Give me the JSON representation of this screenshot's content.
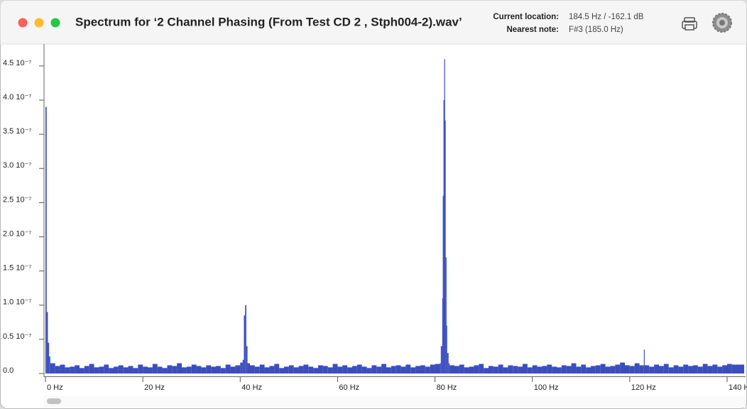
{
  "header": {
    "title": "Spectrum for ‘2 Channel Phasing (From Test CD 2 , Stph004-2).wav’",
    "location_label": "Current location:",
    "location_value": "184.5 Hz / -162.1 dB",
    "note_label": "Nearest note:",
    "note_value": "F#3 (185.0 Hz)"
  },
  "chart_data": {
    "type": "spectrum",
    "color": "#3b4dbf",
    "xlim": [
      0,
      143.5
    ],
    "ylim": [
      0,
      4.8e-07
    ],
    "xticks": [
      {
        "value": 0,
        "label": "0 Hz"
      },
      {
        "value": 20,
        "label": "20 Hz"
      },
      {
        "value": 40,
        "label": "40 Hz"
      },
      {
        "value": 60,
        "label": "60 Hz"
      },
      {
        "value": 80,
        "label": "80 Hz"
      },
      {
        "value": 100,
        "label": "100 Hz"
      },
      {
        "value": 120,
        "label": "120 Hz"
      },
      {
        "value": 140,
        "label": "140 Hz"
      }
    ],
    "yticks": [
      {
        "value": 0,
        "label": "0.0"
      },
      {
        "value": 5e-08,
        "label": "0.5 10⁻⁷"
      },
      {
        "value": 1e-07,
        "label": "1.0 10⁻⁷"
      },
      {
        "value": 1.5e-07,
        "label": "1.5 10⁻⁷"
      },
      {
        "value": 2e-07,
        "label": "2.0 10⁻⁷"
      },
      {
        "value": 2.5e-07,
        "label": "2.5 10⁻⁷"
      },
      {
        "value": 3e-07,
        "label": "3.0 10⁻⁷"
      },
      {
        "value": 3.5e-07,
        "label": "3.5 10⁻⁷"
      },
      {
        "value": 4e-07,
        "label": "4.0 10⁻⁷"
      },
      {
        "value": 4.5e-07,
        "label": "4.5 10⁻⁷"
      }
    ],
    "x": [
      0,
      0.25,
      0.5,
      0.75,
      1,
      2,
      3,
      4,
      5,
      6,
      7,
      8,
      9,
      10,
      11,
      12,
      13,
      14,
      15,
      16,
      17,
      18,
      19,
      20,
      21,
      22,
      23,
      24,
      25,
      26,
      27,
      28,
      29,
      30,
      31,
      32,
      33,
      34,
      35,
      36,
      37,
      38,
      39,
      40,
      40.5,
      40.75,
      41,
      41.25,
      41.5,
      42,
      43,
      44,
      45,
      46,
      47,
      48,
      49,
      50,
      51,
      52,
      53,
      54,
      55,
      56,
      57,
      58,
      59,
      60,
      61,
      62,
      63,
      64,
      65,
      66,
      67,
      68,
      69,
      70,
      71,
      72,
      73,
      74,
      75,
      76,
      77,
      78,
      79,
      80,
      81,
      81.2,
      81.5,
      81.6,
      81.75,
      81.9,
      82,
      82.2,
      82.3,
      82.5,
      82.8,
      83,
      84,
      85,
      86,
      87,
      88,
      89,
      90,
      91,
      92,
      93,
      94,
      95,
      96,
      97,
      98,
      99,
      100,
      101,
      102,
      103,
      104,
      105,
      106,
      107,
      108,
      109,
      110,
      111,
      112,
      113,
      114,
      115,
      116,
      117,
      118,
      119,
      120,
      121,
      122,
      122.9,
      123,
      124,
      125,
      126,
      127,
      128,
      129,
      130,
      131,
      132,
      133,
      134,
      135,
      136,
      137,
      138,
      139,
      140,
      141
    ],
    "values": [
      3.9e-07,
      9e-08,
      4.5e-08,
      2.5e-08,
      1.5e-08,
      1.1e-08,
      1.3e-08,
      9e-09,
      1e-08,
      1.2e-08,
      8e-09,
      1.1e-08,
      1.4e-08,
      9e-09,
      1e-08,
      1.3e-08,
      8e-09,
      1e-08,
      1.2e-08,
      9e-09,
      1.1e-08,
      8e-09,
      1.3e-08,
      1e-08,
      9e-09,
      1.4e-08,
      1e-08,
      8e-09,
      1.2e-08,
      1.1e-08,
      1.5e-08,
      9e-09,
      1e-08,
      1.3e-08,
      1.1e-08,
      9e-09,
      1.2e-08,
      1e-08,
      1.1e-08,
      8e-09,
      1.3e-08,
      1e-08,
      1.2e-08,
      1.6e-08,
      2e-08,
      8.5e-08,
      1e-07,
      4e-08,
      1.5e-08,
      1.2e-08,
      1e-08,
      1.3e-08,
      9e-09,
      1.1e-08,
      1.4e-08,
      8e-09,
      1e-08,
      1.2e-08,
      9e-09,
      1.1e-08,
      1.3e-08,
      1e-08,
      8e-09,
      1.2e-08,
      1.1e-08,
      9e-09,
      1.4e-08,
      1e-08,
      1.2e-08,
      9e-09,
      1.1e-08,
      1.3e-08,
      1e-08,
      8e-09,
      1.2e-08,
      1e-08,
      1.4e-08,
      9e-09,
      1.1e-08,
      1.2e-08,
      1e-08,
      1.3e-08,
      9e-09,
      1.1e-08,
      1.2e-08,
      1e-08,
      1.3e-08,
      1.4e-08,
      1.5e-08,
      4e-08,
      1.1e-07,
      2.6e-07,
      4e-07,
      4.6e-07,
      3.7e-07,
      1.7e-07,
      7e-08,
      3e-08,
      1.5e-08,
      1.2e-08,
      1.1e-08,
      1.3e-08,
      9e-09,
      1e-08,
      1.2e-08,
      1.4e-08,
      8e-09,
      1.1e-08,
      1e-08,
      1.3e-08,
      9e-09,
      1.2e-08,
      1.1e-08,
      1e-08,
      1.4e-08,
      9e-09,
      1.2e-08,
      1e-08,
      1.1e-08,
      1.3e-08,
      1e-08,
      9e-09,
      1.2e-08,
      1.1e-08,
      1.5e-08,
      1e-08,
      1.3e-08,
      9e-09,
      1.1e-08,
      1.2e-08,
      1.4e-08,
      1e-08,
      1.1e-08,
      1.3e-08,
      1.6e-08,
      1.2e-08,
      1.1e-08,
      1.5e-08,
      1.2e-08,
      3.5e-08,
      1.2e-08,
      1e-08,
      1.3e-08,
      1.1e-08,
      1.4e-08,
      9e-09,
      1.2e-08,
      1e-08,
      1.3e-08,
      1.1e-08,
      1.2e-08,
      1e-08,
      1.4e-08,
      1.1e-08,
      1.3e-08,
      1e-08,
      1.2e-08,
      1.4e-08,
      1.3e-08
    ]
  }
}
